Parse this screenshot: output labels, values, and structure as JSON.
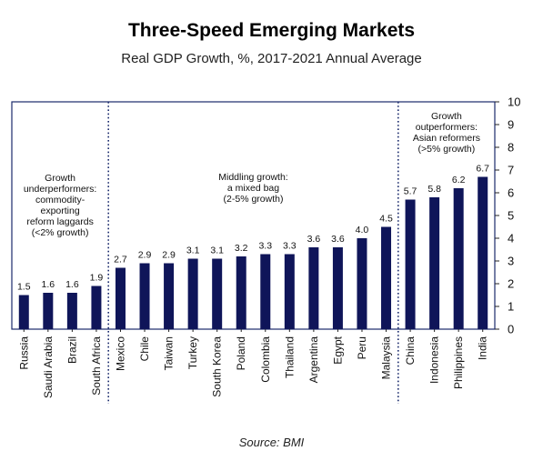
{
  "chart_data": {
    "type": "bar",
    "title": "Three-Speed Emerging Markets",
    "subtitle": "Real GDP Growth, %, 2017-2021 Annual Average",
    "source": "Source: BMI",
    "categories": [
      "Russia",
      "Saudi Arabia",
      "Brazil",
      "South Africa",
      "Mexico",
      "Chile",
      "Taiwan",
      "Turkey",
      "South Korea",
      "Poland",
      "Colombia",
      "Thailand",
      "Argentina",
      "Egypt",
      "Peru",
      "Malaysia",
      "China",
      "Indonesia",
      "Philippines",
      "India"
    ],
    "values": [
      1.5,
      1.6,
      1.6,
      1.9,
      2.7,
      2.9,
      2.9,
      3.1,
      3.1,
      3.2,
      3.3,
      3.3,
      3.6,
      3.6,
      4.0,
      4.5,
      5.7,
      5.8,
      6.2,
      6.7
    ],
    "value_labels": [
      "1.5",
      "1.6",
      "1.6",
      "1.9",
      "2.7",
      "2.9",
      "2.9",
      "3.1",
      "3.1",
      "3.2",
      "3.3",
      "3.3",
      "3.6",
      "3.6",
      "4.0",
      "4.5",
      "5.7",
      "5.8",
      "6.2",
      "6.7"
    ],
    "ylim": [
      0,
      10
    ],
    "yticks": [
      "0",
      "1",
      "2",
      "3",
      "4",
      "5",
      "6",
      "7",
      "8",
      "9",
      "10"
    ],
    "y_axis_side": "right",
    "bar_color": "#0f1559",
    "frame_color": "#1a2a6c",
    "groups": [
      {
        "label": "Growth\nunderperformers:\ncommodity-\nexporting\nreform laggards\n(<2% growth)",
        "start": 0,
        "end": 3
      },
      {
        "label": "Middling growth:\na mixed bag\n(2-5% growth)",
        "start": 4,
        "end": 15
      },
      {
        "label": "Growth\noutperformers:\nAsian reformers\n(>5% growth)",
        "start": 16,
        "end": 19
      }
    ]
  }
}
